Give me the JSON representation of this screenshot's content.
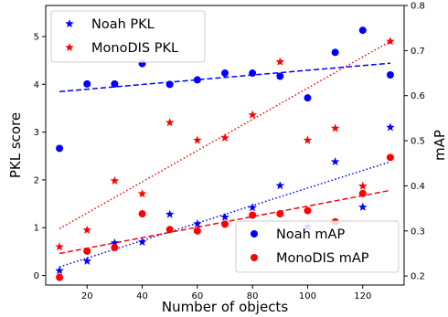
{
  "chart_data": {
    "type": "scatter",
    "xlabel": "Number of objects",
    "ylabel_left": "PKL score",
    "ylabel_right": "mAP",
    "xlim": [
      5,
      135
    ],
    "ylim_left": [
      -0.2,
      5.65
    ],
    "ylim_right": [
      0.18,
      0.8
    ],
    "x_ticks": [
      "20",
      "40",
      "60",
      "80",
      "100",
      "120"
    ],
    "y_ticks_left": [
      "0",
      "1",
      "2",
      "3",
      "4",
      "5"
    ],
    "y_ticks_right": [
      "0.2",
      "0.3",
      "0.4",
      "0.5",
      "0.6",
      "0.7",
      "0.8"
    ],
    "grid": false,
    "legends": [
      {
        "position": "upper-left",
        "entries": [
          "Noah PKL",
          "MonoDIS PKL"
        ]
      },
      {
        "position": "lower-right",
        "entries": [
          "Noah mAP",
          "MonoDIS mAP"
        ]
      }
    ],
    "series": [
      {
        "name": "Noah PKL",
        "axis": "left",
        "marker": "star",
        "color": "#0000ff",
        "x": [
          10,
          20,
          30,
          40,
          50,
          60,
          70,
          80,
          90,
          100,
          110,
          120,
          130
        ],
        "y": [
          0.1,
          0.3,
          0.68,
          0.7,
          1.28,
          1.08,
          1.22,
          1.42,
          1.88,
          1.02,
          2.38,
          1.43,
          3.1
        ]
      },
      {
        "name": "MonoDIS PKL",
        "axis": "left",
        "marker": "star",
        "color": "#ff0000",
        "x": [
          10,
          20,
          30,
          40,
          50,
          60,
          70,
          80,
          90,
          100,
          110,
          120,
          130
        ],
        "y": [
          0.6,
          0.95,
          1.98,
          1.71,
          3.2,
          2.83,
          2.88,
          3.36,
          4.47,
          2.83,
          3.08,
          1.87,
          4.9
        ]
      },
      {
        "name": "Noah mAP",
        "axis": "right",
        "marker": "circle",
        "color": "#0000ff",
        "x": [
          10,
          20,
          30,
          40,
          50,
          60,
          70,
          80,
          90,
          100,
          110,
          120,
          130
        ],
        "y": [
          0.483,
          0.626,
          0.626,
          0.671,
          0.625,
          0.635,
          0.65,
          0.65,
          0.643,
          0.595,
          0.696,
          0.745,
          0.646
        ]
      },
      {
        "name": "MonoDIS mAP",
        "axis": "right",
        "marker": "circle",
        "color": "#ff0000",
        "x": [
          10,
          20,
          30,
          40,
          50,
          60,
          70,
          80,
          90,
          100,
          110,
          120,
          130
        ],
        "y": [
          0.197,
          0.255,
          0.263,
          0.338,
          0.303,
          0.3,
          0.315,
          0.335,
          0.338,
          0.345,
          0.32,
          0.383,
          0.463
        ]
      }
    ],
    "trend_lines": [
      {
        "of": "Noah PKL",
        "axis": "left",
        "style": "dotted",
        "color": "#0000ff",
        "x": [
          10,
          130
        ],
        "y": [
          0.18,
          2.38
        ]
      },
      {
        "of": "MonoDIS PKL",
        "axis": "left",
        "style": "dotted",
        "color": "#ff0000",
        "x": [
          10,
          130
        ],
        "y": [
          0.98,
          4.9
        ]
      },
      {
        "of": "Noah mAP",
        "axis": "right",
        "style": "dashed",
        "color": "#0000ff",
        "x": [
          10,
          130
        ],
        "y": [
          0.609,
          0.672
        ]
      },
      {
        "of": "MonoDIS mAP",
        "axis": "right",
        "style": "dashed",
        "color": "#ff0000",
        "x": [
          10,
          130
        ],
        "y": [
          0.25,
          0.39
        ]
      }
    ]
  }
}
